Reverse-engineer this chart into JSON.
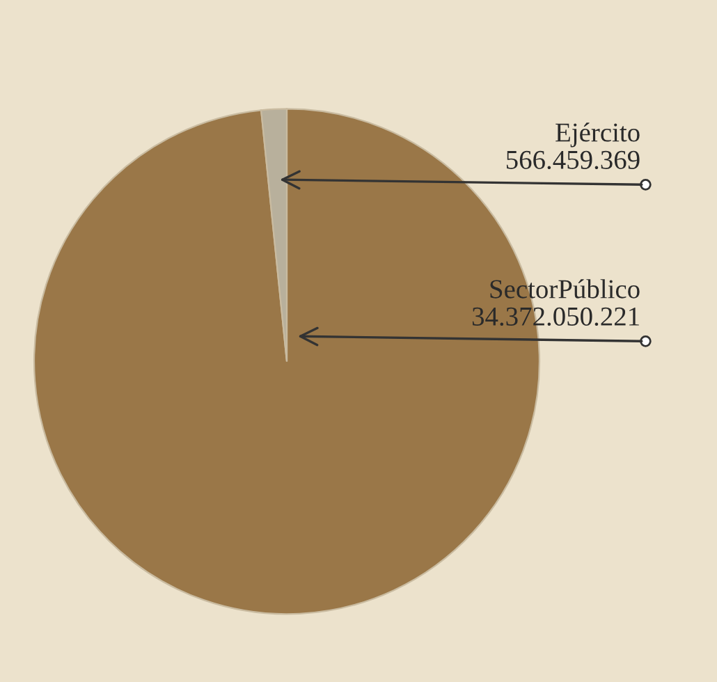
{
  "chart_data": {
    "type": "pie",
    "categories": [
      "SectorPúblico",
      "Ejército"
    ],
    "values": [
      34372050221,
      566459369
    ],
    "value_labels": [
      "34.372.050.221",
      "566.459.369"
    ],
    "colors": [
      "#9a7748",
      "#b8b09c"
    ],
    "legend": false
  }
}
